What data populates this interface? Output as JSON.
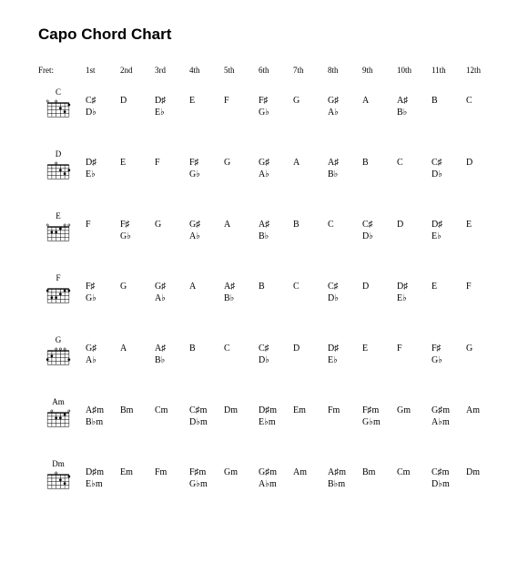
{
  "title": "Capo Chord Chart",
  "fret_label": "Fret:",
  "frets": [
    "1st",
    "2nd",
    "3rd",
    "4th",
    "5th",
    "6th",
    "7th",
    "8th",
    "9th",
    "10th",
    "11th",
    "12th"
  ],
  "rows": [
    {
      "chord": "C",
      "dots": [
        [
          0,
          1
        ],
        [
          1,
          3
        ],
        [
          2,
          2
        ],
        [
          4,
          0
        ]
      ],
      "opens": [
        3,
        5
      ],
      "cells": [
        [
          "C♯",
          "D♭"
        ],
        [
          "D",
          ""
        ],
        [
          "D♯",
          "E♭"
        ],
        [
          "E",
          ""
        ],
        [
          "F",
          ""
        ],
        [
          "F♯",
          "G♭"
        ],
        [
          "G",
          ""
        ],
        [
          "G♯",
          "A♭"
        ],
        [
          "A",
          ""
        ],
        [
          "A♯",
          "B♭"
        ],
        [
          "B",
          ""
        ],
        [
          "C",
          ""
        ]
      ]
    },
    {
      "chord": "D",
      "dots": [
        [
          0,
          2
        ],
        [
          1,
          3
        ],
        [
          2,
          2
        ]
      ],
      "opens": [
        3
      ],
      "cells": [
        [
          "D♯",
          "E♭"
        ],
        [
          "E",
          ""
        ],
        [
          "F",
          ""
        ],
        [
          "F♯",
          "G♭"
        ],
        [
          "G",
          ""
        ],
        [
          "G♯",
          "A♭"
        ],
        [
          "A",
          ""
        ],
        [
          "A♯",
          "B♭"
        ],
        [
          "B",
          ""
        ],
        [
          "C",
          ""
        ],
        [
          "C♯",
          "D♭"
        ],
        [
          "D",
          ""
        ]
      ]
    },
    {
      "chord": "E",
      "dots": [
        [
          2,
          1
        ],
        [
          3,
          2
        ],
        [
          4,
          2
        ]
      ],
      "opens": [
        0,
        1,
        5
      ],
      "cells": [
        [
          "F",
          ""
        ],
        [
          "F♯",
          "G♭"
        ],
        [
          "G",
          ""
        ],
        [
          "G♯",
          "A♭"
        ],
        [
          "A",
          ""
        ],
        [
          "A♯",
          "B♭"
        ],
        [
          "B",
          ""
        ],
        [
          "C",
          ""
        ],
        [
          "C♯",
          "D♭"
        ],
        [
          "D",
          ""
        ],
        [
          "D♯",
          "E♭"
        ],
        [
          "E",
          ""
        ]
      ]
    },
    {
      "chord": "F",
      "dots": [
        [
          0,
          1
        ],
        [
          1,
          1
        ],
        [
          2,
          2
        ],
        [
          3,
          3
        ],
        [
          4,
          3
        ],
        [
          5,
          1
        ]
      ],
      "opens": [],
      "cells": [
        [
          "F♯",
          "G♭"
        ],
        [
          "G",
          ""
        ],
        [
          "G♯",
          "A♭"
        ],
        [
          "A",
          ""
        ],
        [
          "A♯",
          "B♭"
        ],
        [
          "B",
          ""
        ],
        [
          "C",
          ""
        ],
        [
          "C♯",
          "D♭"
        ],
        [
          "D",
          ""
        ],
        [
          "D♯",
          "E♭"
        ],
        [
          "E",
          ""
        ],
        [
          "F",
          ""
        ]
      ]
    },
    {
      "chord": "G",
      "dots": [
        [
          0,
          3
        ],
        [
          4,
          2
        ],
        [
          5,
          3
        ]
      ],
      "opens": [
        1,
        2,
        3
      ],
      "cells": [
        [
          "G♯",
          "A♭"
        ],
        [
          "A",
          ""
        ],
        [
          "A♯",
          "B♭"
        ],
        [
          "B",
          ""
        ],
        [
          "C",
          ""
        ],
        [
          "C♯",
          "D♭"
        ],
        [
          "D",
          ""
        ],
        [
          "D♯",
          "E♭"
        ],
        [
          "E",
          ""
        ],
        [
          "F",
          ""
        ],
        [
          "F♯",
          "G♭"
        ],
        [
          "G",
          ""
        ]
      ]
    },
    {
      "chord": "Am",
      "dots": [
        [
          1,
          1
        ],
        [
          2,
          2
        ],
        [
          3,
          2
        ]
      ],
      "opens": [
        0,
        4
      ],
      "cells": [
        [
          "A♯m",
          "B♭m"
        ],
        [
          "Bm",
          ""
        ],
        [
          "Cm",
          ""
        ],
        [
          "C♯m",
          "D♭m"
        ],
        [
          "Dm",
          ""
        ],
        [
          "D♯m",
          "E♭m"
        ],
        [
          "Em",
          ""
        ],
        [
          "Fm",
          ""
        ],
        [
          "F♯m",
          "G♭m"
        ],
        [
          "Gm",
          ""
        ],
        [
          "G♯m",
          "A♭m"
        ],
        [
          "Am",
          ""
        ]
      ]
    },
    {
      "chord": "Dm",
      "dots": [
        [
          0,
          1
        ],
        [
          1,
          3
        ],
        [
          2,
          2
        ]
      ],
      "opens": [
        3
      ],
      "cells": [
        [
          "D♯m",
          "E♭m"
        ],
        [
          "Em",
          ""
        ],
        [
          "Fm",
          ""
        ],
        [
          "F♯m",
          "G♭m"
        ],
        [
          "Gm",
          ""
        ],
        [
          "G♯m",
          "A♭m"
        ],
        [
          "Am",
          ""
        ],
        [
          "A♯m",
          "B♭m"
        ],
        [
          "Bm",
          ""
        ],
        [
          "Cm",
          ""
        ],
        [
          "C♯m",
          "D♭m"
        ],
        [
          "Dm",
          ""
        ]
      ]
    }
  ],
  "diagram": {
    "strings": 6,
    "frets": 4,
    "width": 28,
    "height": 22,
    "line_color": "#000",
    "dot_radius": 1.6
  }
}
